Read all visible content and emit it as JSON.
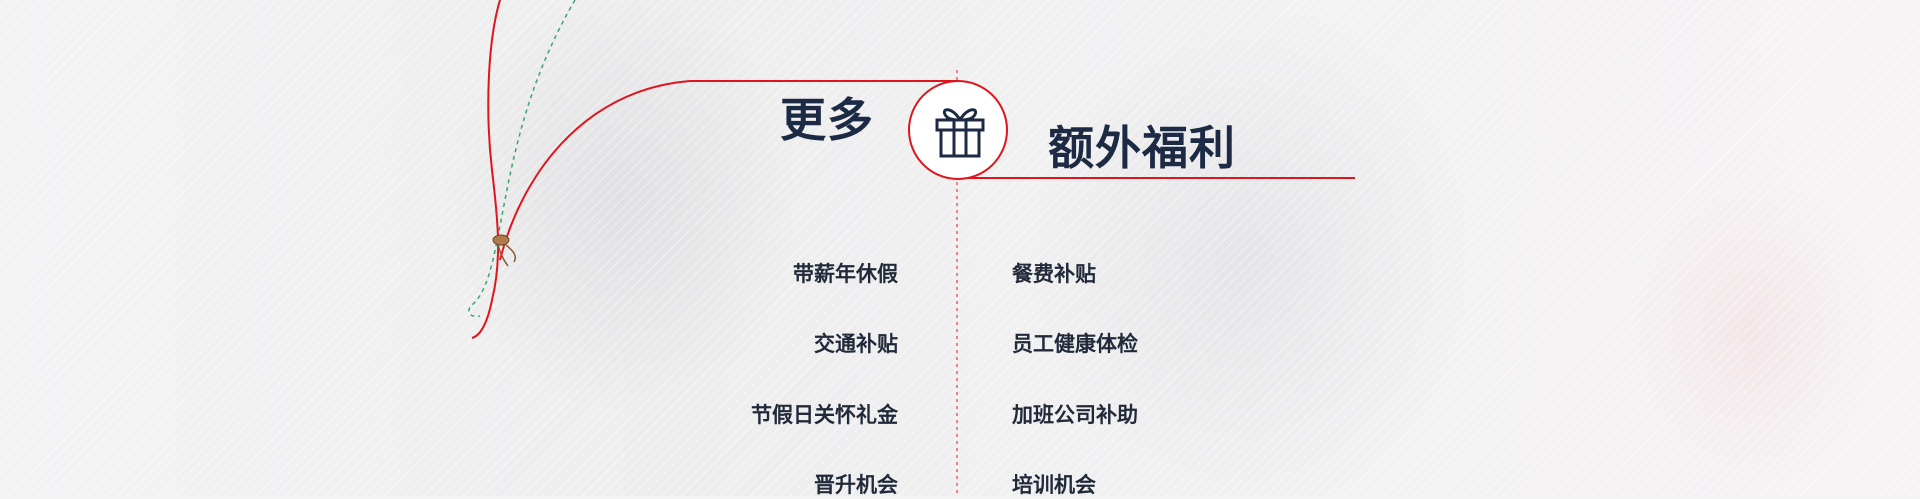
{
  "heading": {
    "left": "更多",
    "right": "额外福利"
  },
  "icons": {
    "center": "gift-icon",
    "decoration": "balloon-string-icon"
  },
  "colors": {
    "accent": "#e0141b",
    "text": "#222a3a",
    "heading": "#1d2a44"
  },
  "benefits": {
    "left": [
      "带薪年休假",
      "交通补贴",
      "节假日关怀礼金",
      "晋升机会"
    ],
    "right": [
      "餐费补贴",
      "员工健康体检",
      "加班公司补助",
      "培训机会"
    ]
  }
}
